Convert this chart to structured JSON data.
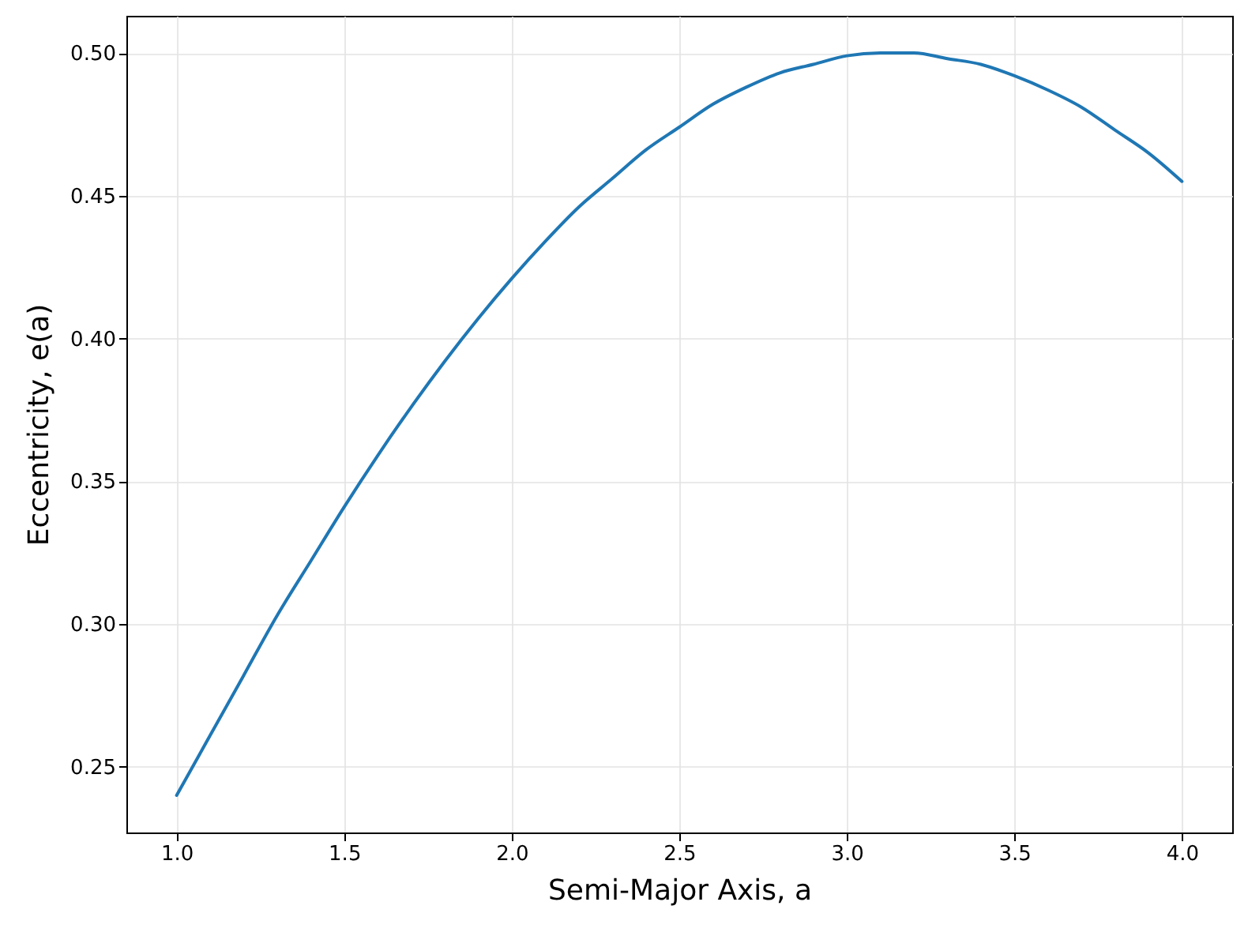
{
  "chart_data": {
    "type": "line",
    "xlabel": "Semi-Major Axis, a",
    "ylabel": "Eccentricity, e(a)",
    "x": [
      1.0,
      1.1,
      1.2,
      1.3,
      1.4,
      1.5,
      1.6,
      1.7,
      1.8,
      1.9,
      2.0,
      2.1,
      2.2,
      2.3,
      2.4,
      2.5,
      2.6,
      2.7,
      2.8,
      2.9,
      3.0,
      3.1,
      3.2,
      3.3,
      3.4,
      3.5,
      3.6,
      3.7,
      3.8,
      3.9,
      4.0
    ],
    "series": [
      {
        "color": "#1f77b4",
        "values": [
          0.24,
          0.261,
          0.282,
          0.303,
          0.322,
          0.341,
          0.359,
          0.376,
          0.392,
          0.407,
          0.421,
          0.434,
          0.446,
          0.456,
          0.466,
          0.474,
          0.482,
          0.488,
          0.493,
          0.496,
          0.499,
          0.5,
          0.5,
          0.498,
          0.496,
          0.492,
          0.487,
          0.481,
          0.473,
          0.465,
          0.455
        ]
      }
    ],
    "xlim": [
      0.85,
      4.15
    ],
    "ylim": [
      0.227,
      0.513
    ],
    "xticks": [
      {
        "value": 1,
        "label": "1.0"
      },
      1.5,
      {
        "value": 2,
        "label": "2.0"
      },
      2.5,
      {
        "value": 3,
        "label": "3.0"
      },
      3.5,
      {
        "value": 4,
        "label": "4.0"
      }
    ],
    "yticks": [
      0.25,
      {
        "value": 0.3,
        "label": "0.30"
      },
      0.35,
      {
        "value": 0.4,
        "label": "0.40"
      },
      0.45,
      {
        "value": 0.5,
        "label": "0.50"
      }
    ],
    "grid": true,
    "line_style": "solid"
  }
}
